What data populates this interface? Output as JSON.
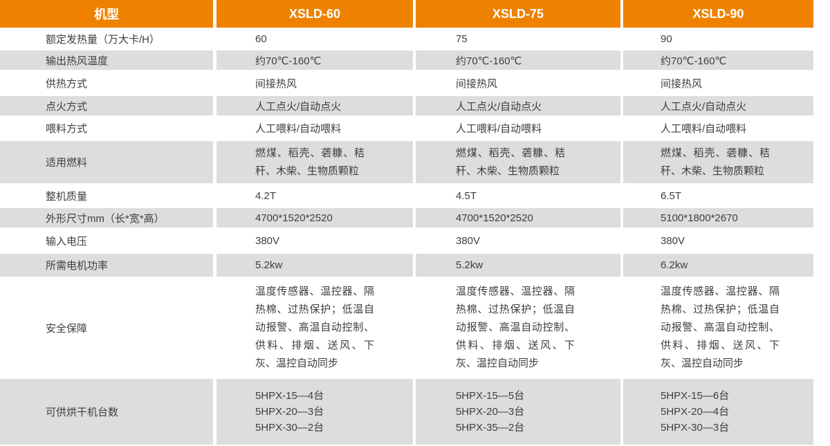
{
  "header": {
    "model_label": "机型",
    "models": [
      "XSLD-60",
      "XSLD-75",
      "XSLD-90"
    ]
  },
  "rows": [
    {
      "label": "额定发热量（万大卡/H）",
      "values": [
        "60",
        "75",
        "90"
      ]
    },
    {
      "label": "输出热风温度",
      "values": [
        "约70℃-160℃",
        "约70℃-160℃",
        "约70℃-160℃"
      ]
    },
    {
      "label": "供热方式",
      "values": [
        "间接热风",
        "间接热风",
        "间接热风"
      ]
    },
    {
      "label": "点火方式",
      "values": [
        "人工点火/自动点火",
        "人工点火/自动点火",
        "人工点火/自动点火"
      ]
    },
    {
      "label": "喂料方式",
      "values": [
        "人工喂料/自动喂料",
        "人工喂料/自动喂料",
        "人工喂料/自动喂料"
      ]
    },
    {
      "label": "适用燃料",
      "values": [
        "燃煤、稻壳、砻糠、秸秆、木柴、生物质颗粒",
        "燃煤、稻壳、砻糠、秸秆、木柴、生物质颗粒",
        "燃煤、稻壳、砻糠、秸秆、木柴、生物质颗粒"
      ]
    },
    {
      "label": "整机质量",
      "values": [
        "4.2T",
        "4.5T",
        "6.5T"
      ]
    },
    {
      "label": "外形尺寸mm（长*宽*高）",
      "values": [
        "4700*1520*2520",
        "4700*1520*2520",
        "5100*1800*2670"
      ]
    },
    {
      "label": "输入电压",
      "values": [
        "380V",
        "380V",
        "380V"
      ]
    },
    {
      "label": "所需电机功率",
      "values": [
        "5.2kw",
        "5.2kw",
        "6.2kw"
      ]
    },
    {
      "label": "安全保障",
      "values": [
        "温度传感器、温控器、隔热棉、过热保护；低温自动报警、高温自动控制、供料、排烟、送风、下灰、温控自动同步",
        "温度传感器、温控器、隔热棉、过热保护；低温自动报警、高温自动控制、供料、排烟、送风、下灰、温控自动同步",
        "温度传感器、温控器、隔热棉、过热保护；低温自动报警、高温自动控制、供料、排烟、送风、下灰、温控自动同步"
      ]
    },
    {
      "label": "可供烘干机台数",
      "values": [
        "5HPX-15—4台\n5HPX-20—3台\n5HPX-30—2台",
        "5HPX-15—5台\n5HPX-20—3台\n5HPX-35—2台",
        "5HPX-15—6台\n5HPX-20—4台\n5HPX-30—3台"
      ]
    }
  ],
  "colors": {
    "header_bg": "#EE8200",
    "header_text": "#FFFFFF",
    "stripe_bg": "#DCDDDD",
    "body_text": "#3E3E3E"
  }
}
